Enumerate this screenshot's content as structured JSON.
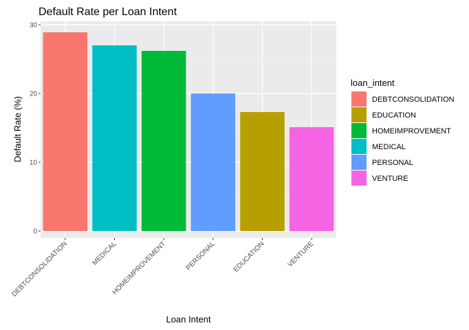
{
  "chart_data": {
    "type": "bar",
    "title": "Default Rate per Loan Intent",
    "xlabel": "Loan Intent",
    "ylabel": "Default Rate (%)",
    "categories": [
      "DEBTCONSOLIDATION",
      "MEDICAL",
      "HOMEIMPROVEMENT",
      "PERSONAL",
      "EDUCATION",
      "VENTURE"
    ],
    "values": [
      28.9,
      27.0,
      26.2,
      20.0,
      17.3,
      15.1
    ],
    "ylim": [
      0,
      30.5
    ],
    "yticks": [
      0,
      10,
      20,
      30
    ],
    "grid": true,
    "legend": {
      "title": "loan_intent",
      "placement": "right",
      "entries": [
        "DEBTCONSOLIDATION",
        "EDUCATION",
        "HOMEIMPROVEMENT",
        "MEDICAL",
        "PERSONAL",
        "VENTURE"
      ]
    },
    "colors": {
      "DEBTCONSOLIDATION": "#F8766D",
      "EDUCATION": "#B79F00",
      "HOMEIMPROVEMENT": "#00BA38",
      "MEDICAL": "#00BFC4",
      "PERSONAL": "#619CFF",
      "VENTURE": "#F564E3"
    },
    "panel_background": "#EBEBEB",
    "grid_color": "#FFFFFF"
  }
}
